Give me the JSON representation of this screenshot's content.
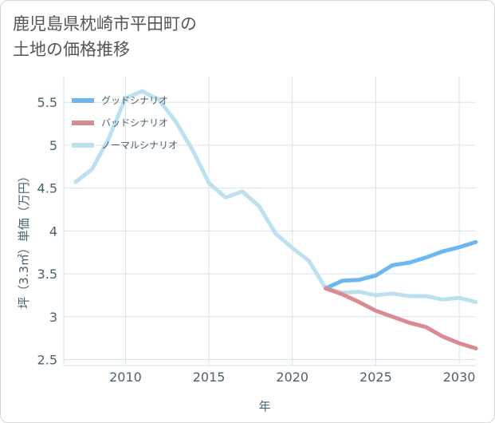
{
  "title": "鹿児島県枕崎市平田町の\n土地の価格推移",
  "chart_data": {
    "type": "line",
    "xlabel": "年",
    "ylabel": "坪（3.3㎡）単価（万円）",
    "xlim": [
      2006.3,
      2031
    ],
    "ylim": [
      2.43,
      5.8
    ],
    "x_ticks": [
      "2010",
      "2015",
      "2020",
      "2025",
      "2030"
    ],
    "y_ticks": [
      "2.5",
      "3",
      "3.5",
      "4",
      "4.5",
      "5",
      "5.5"
    ],
    "grid": true,
    "legend_position": "top-left",
    "series": [
      {
        "name": "グッドシナリオ",
        "color": "#6cb8ee",
        "x": [
          2022,
          2023,
          2024,
          2025,
          2026,
          2027,
          2028,
          2029,
          2030,
          2031
        ],
        "values": [
          3.33,
          3.42,
          3.43,
          3.48,
          3.6,
          3.63,
          3.69,
          3.76,
          3.81,
          3.87
        ]
      },
      {
        "name": "バッドシナリオ",
        "color": "#dc8a92",
        "x": [
          2022,
          2023,
          2024,
          2025,
          2026,
          2027,
          2028,
          2029,
          2030,
          2031
        ],
        "values": [
          3.33,
          3.26,
          3.17,
          3.07,
          3.0,
          2.93,
          2.88,
          2.77,
          2.69,
          2.63
        ]
      },
      {
        "name": "ノーマルシナリオ",
        "color": "#bde0ef",
        "x": [
          2007,
          2008,
          2009,
          2010,
          2011,
          2012,
          2013,
          2014,
          2015,
          2016,
          2017,
          2018,
          2019,
          2020,
          2021,
          2022,
          2023,
          2024,
          2025,
          2026,
          2027,
          2028,
          2029,
          2030,
          2031
        ],
        "values": [
          4.57,
          4.72,
          5.08,
          5.55,
          5.63,
          5.53,
          5.28,
          4.95,
          4.56,
          4.39,
          4.46,
          4.29,
          3.97,
          3.8,
          3.65,
          3.33,
          3.28,
          3.29,
          3.25,
          3.27,
          3.24,
          3.24,
          3.2,
          3.22,
          3.17
        ]
      }
    ]
  }
}
